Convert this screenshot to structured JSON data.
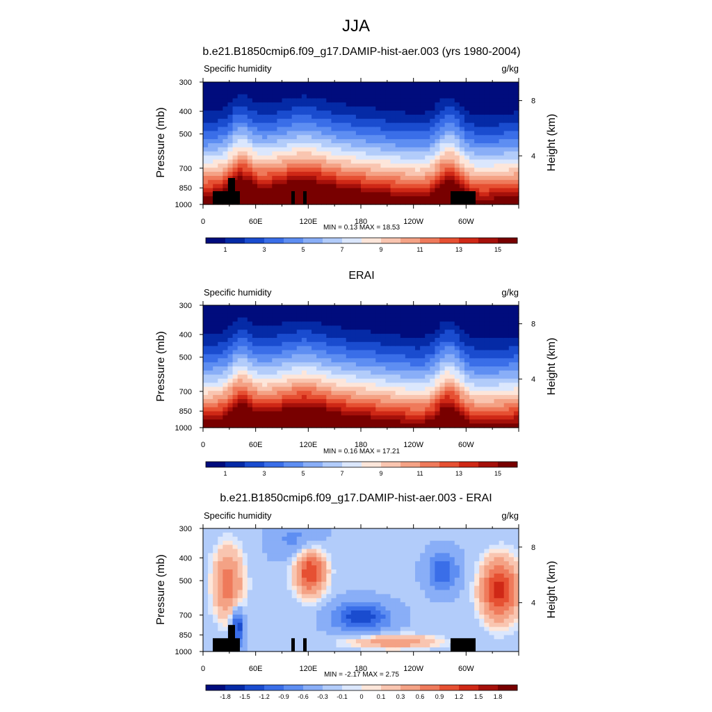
{
  "figure": {
    "title": "JJA"
  },
  "chart_data": [
    {
      "type": "heatmap",
      "title": "b.e21.B1850cmip6.f09_g17.DAMIP-hist-aer.003 (yrs 1980-2004)",
      "field_label": "Specific humidity",
      "units": "g/kg",
      "ylabel": "Pressure (mb)",
      "ylabel_right": "Height (km)",
      "y_ticks": [
        "300",
        "400",
        "500",
        "700",
        "850",
        "1000"
      ],
      "y_right_ticks": [
        "8",
        "4"
      ],
      "x_ticks": [
        "0",
        "60E",
        "120E",
        "180",
        "120W",
        "60W"
      ],
      "stats": "MIN =   0.13  MAX =  18.53",
      "colorbar_labels": [
        "1",
        "3",
        "5",
        "7",
        "9",
        "11",
        "13",
        "15"
      ],
      "colorbar_levels": 16,
      "min": 0.13,
      "max": 18.53
    },
    {
      "type": "heatmap",
      "title": "ERAI",
      "field_label": "Specific humidity",
      "units": "g/kg",
      "ylabel": "Pressure (mb)",
      "ylabel_right": "Height (km)",
      "y_ticks": [
        "300",
        "400",
        "500",
        "700",
        "850",
        "1000"
      ],
      "y_right_ticks": [
        "8",
        "4"
      ],
      "x_ticks": [
        "0",
        "60E",
        "120E",
        "180",
        "120W",
        "60W"
      ],
      "stats": "MIN =   0.16  MAX =  17.21",
      "colorbar_labels": [
        "1",
        "3",
        "5",
        "7",
        "9",
        "11",
        "13",
        "15"
      ],
      "colorbar_levels": 16,
      "min": 0.16,
      "max": 17.21
    },
    {
      "type": "heatmap",
      "title": "b.e21.B1850cmip6.f09_g17.DAMIP-hist-aer.003 - ERAI",
      "field_label": "Specific humidity",
      "units": "g/kg",
      "ylabel": "Pressure (mb)",
      "ylabel_right": "Height (km)",
      "y_ticks": [
        "300",
        "400",
        "500",
        "700",
        "850",
        "1000"
      ],
      "y_right_ticks": [
        "8",
        "4"
      ],
      "x_ticks": [
        "0",
        "60E",
        "120E",
        "180",
        "120W",
        "60W"
      ],
      "stats": "MIN =  -2.17  MAX =   2.75",
      "colorbar_labels": [
        "-1.8",
        "-1.5",
        "-1.2",
        "-0.9",
        "-0.6",
        "-0.3",
        "-0.1",
        "0",
        "0.1",
        "0.3",
        "0.6",
        "0.9",
        "1.2",
        "1.5",
        "1.8"
      ],
      "colorbar_levels": 16,
      "min": -2.17,
      "max": 2.75
    }
  ],
  "colors": {
    "scale": [
      "#000c7d",
      "#052aa6",
      "#1a4ccf",
      "#3a6ee8",
      "#5e8ef2",
      "#89aef7",
      "#b2ccfa",
      "#dbe7fd",
      "#fde6da",
      "#f9c5b0",
      "#f4a285",
      "#ef7a5b",
      "#e65032",
      "#cf2816",
      "#a5100a",
      "#780000"
    ],
    "terrain": "#000000"
  }
}
